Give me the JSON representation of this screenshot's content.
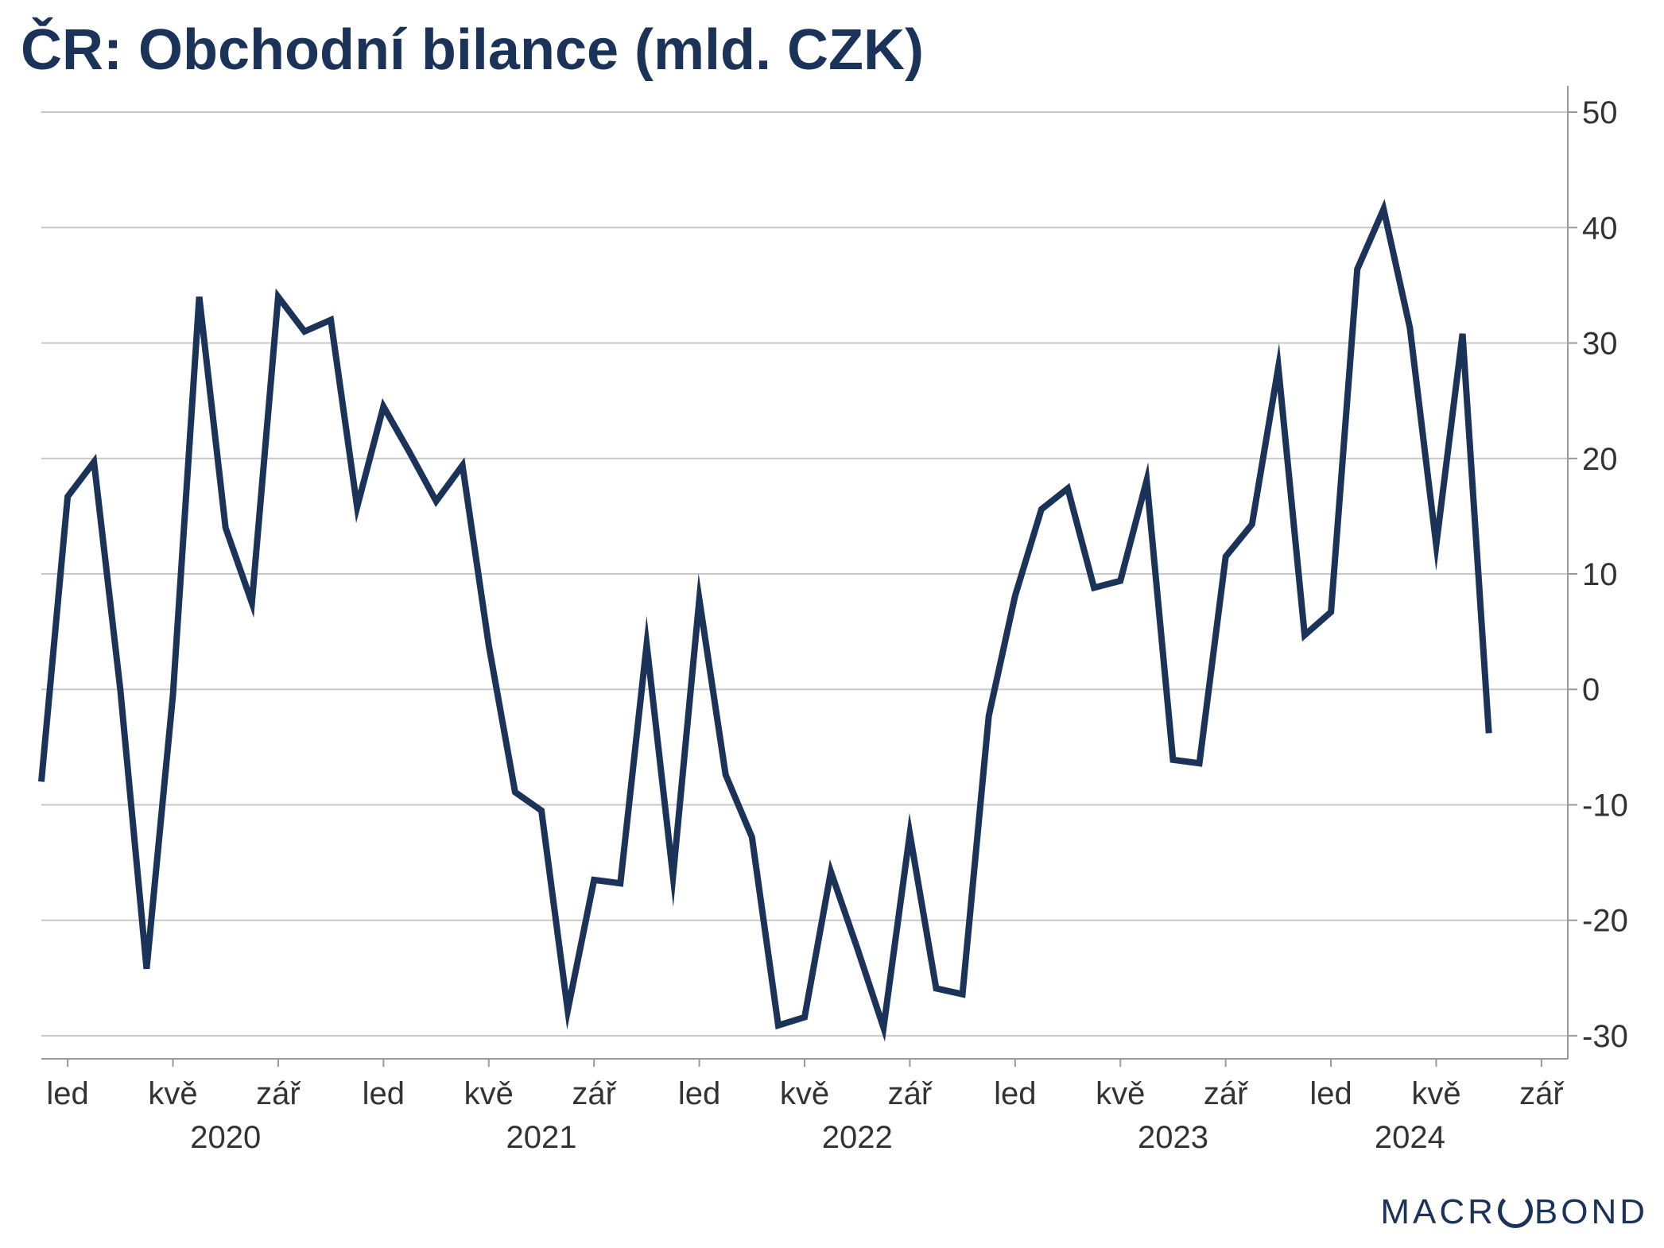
{
  "title": "ČR: Obchodní bilance (mld. CZK)",
  "logo": {
    "before": "MACR",
    "after": "BOND"
  },
  "colors": {
    "line": "#1b3358",
    "grid": "#c8c8c8",
    "axis": "#999999",
    "tick_text": "#333333",
    "title": "#1b3358"
  },
  "chart_data": {
    "type": "line",
    "title": "ČR: Obchodní bilance (mld. CZK)",
    "xlabel": "",
    "ylabel": "",
    "y_axis_position": "right",
    "grid": true,
    "ylim": [
      -32,
      52
    ],
    "yticks": [
      50,
      40,
      30,
      20,
      10,
      0,
      -10,
      -20,
      -30
    ],
    "x_range": [
      "2019-12",
      "2024-10"
    ],
    "x_ticks": [
      {
        "date": "2020-01",
        "label": "led"
      },
      {
        "date": "2020-05",
        "label": "kvě"
      },
      {
        "date": "2020-09",
        "label": "zář"
      },
      {
        "date": "2021-01",
        "label": "led"
      },
      {
        "date": "2021-05",
        "label": "kvě"
      },
      {
        "date": "2021-09",
        "label": "zář"
      },
      {
        "date": "2022-01",
        "label": "led"
      },
      {
        "date": "2022-05",
        "label": "kvě"
      },
      {
        "date": "2022-09",
        "label": "zář"
      },
      {
        "date": "2023-01",
        "label": "led"
      },
      {
        "date": "2023-05",
        "label": "kvě"
      },
      {
        "date": "2023-09",
        "label": "zář"
      },
      {
        "date": "2024-01",
        "label": "led"
      },
      {
        "date": "2024-05",
        "label": "kvě"
      },
      {
        "date": "2024-09",
        "label": "zář"
      }
    ],
    "year_labels": [
      {
        "year": "2020",
        "center": "2020-07"
      },
      {
        "year": "2021",
        "center": "2021-07"
      },
      {
        "year": "2022",
        "center": "2022-07"
      },
      {
        "year": "2023",
        "center": "2023-07"
      },
      {
        "year": "2024",
        "center": "2024-04"
      }
    ],
    "series": [
      {
        "dates": [
          "2019-12",
          "2020-01",
          "2020-02",
          "2020-03",
          "2020-04",
          "2020-05",
          "2020-06",
          "2020-07",
          "2020-08",
          "2020-09",
          "2020-10",
          "2020-11",
          "2020-12",
          "2021-01",
          "2021-02",
          "2021-03",
          "2021-04",
          "2021-05",
          "2021-06",
          "2021-07",
          "2021-08",
          "2021-09",
          "2021-10",
          "2021-11",
          "2021-12",
          "2022-01",
          "2022-02",
          "2022-03",
          "2022-04",
          "2022-05",
          "2022-06",
          "2022-07",
          "2022-08",
          "2022-09",
          "2022-10",
          "2022-11",
          "2022-12",
          "2023-01",
          "2023-02",
          "2023-03",
          "2023-04",
          "2023-05",
          "2023-06",
          "2023-07",
          "2023-08",
          "2023-09",
          "2023-10",
          "2023-11",
          "2023-12",
          "2024-01",
          "2024-02",
          "2024-03",
          "2024-04",
          "2024-05",
          "2024-06",
          "2024-07"
        ],
        "values": [
          -8,
          16.7,
          19.7,
          0,
          -24.2,
          -0.5,
          34,
          14,
          7.5,
          34,
          31,
          32,
          15.8,
          24.5,
          20.5,
          16.3,
          19.4,
          3.8,
          -8.9,
          -10.5,
          -27.8,
          -16.5,
          -16.8,
          3.9,
          -16.2,
          7.8,
          -7.4,
          -12.8,
          -29.1,
          -28.4,
          -15.8,
          -22.4,
          -29.3,
          -12.5,
          -25.9,
          -26.4,
          -2.3,
          8.1,
          15.6,
          17.4,
          8.8,
          9.4,
          18.1,
          -6.1,
          -6.4,
          11.5,
          14.3,
          27.9,
          4.7,
          6.7,
          36.4,
          41.6,
          31.3,
          12.5,
          30.8,
          -3.8
        ]
      }
    ]
  }
}
